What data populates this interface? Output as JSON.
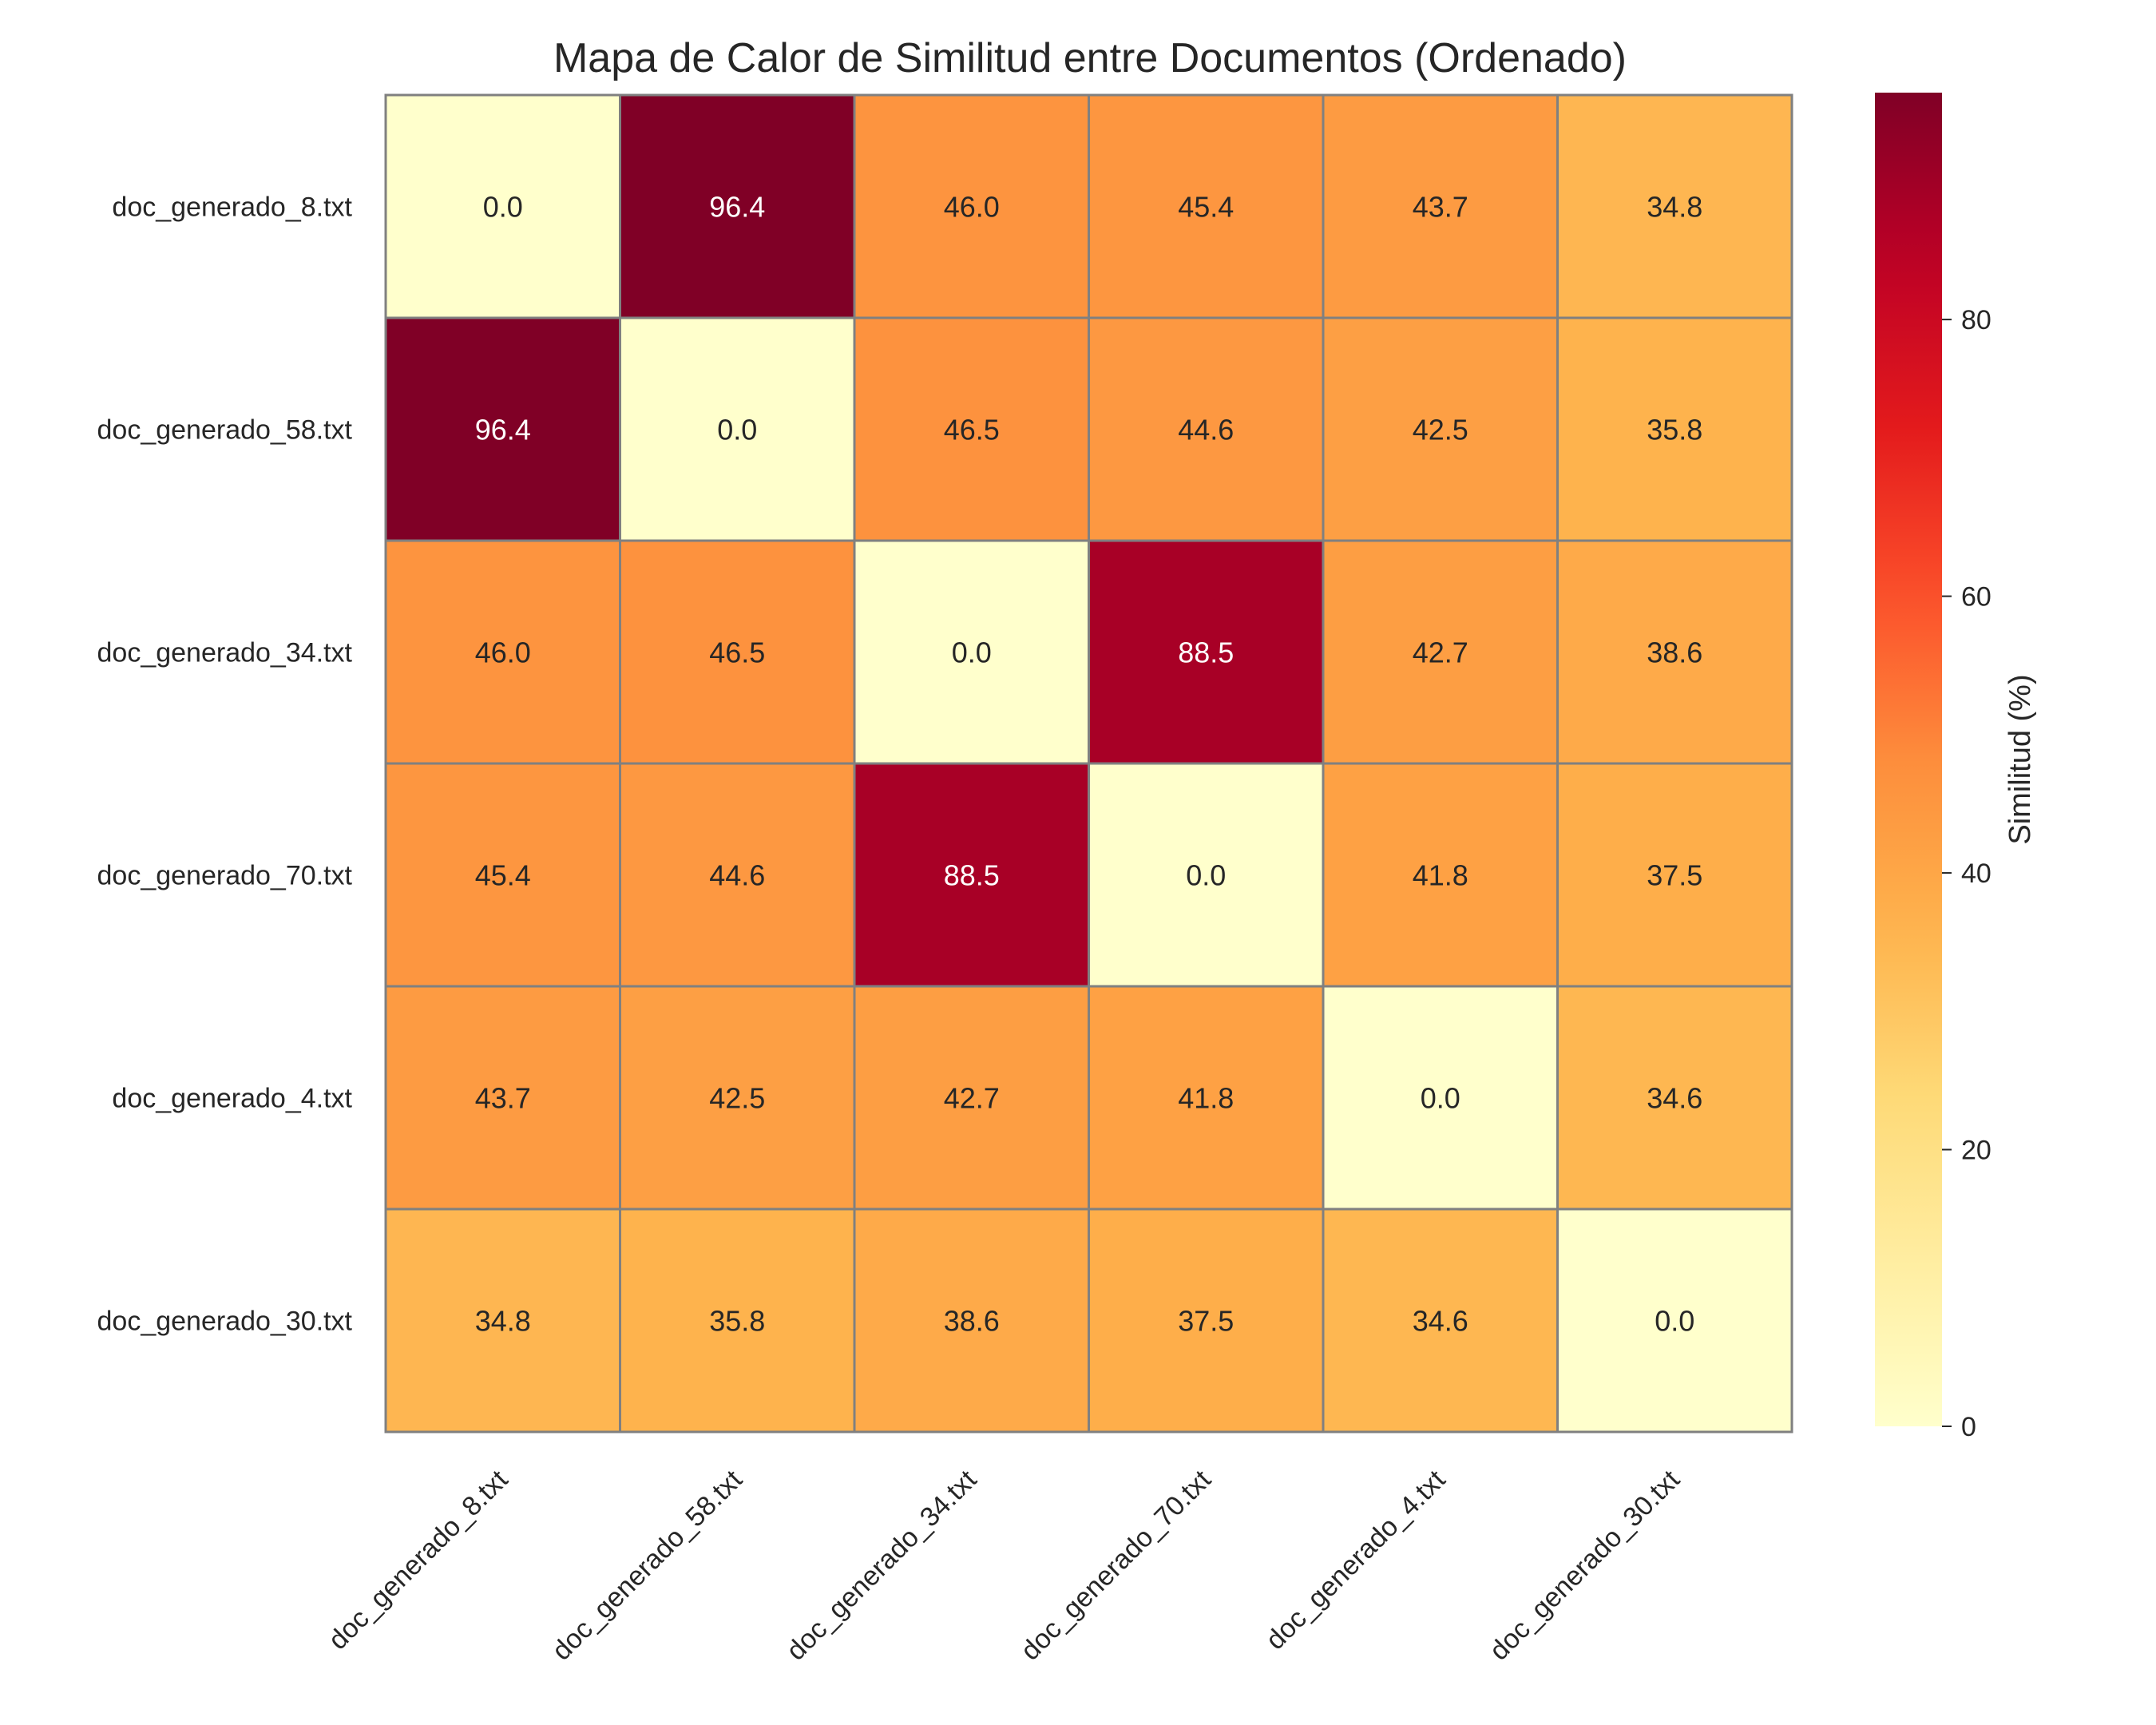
{
  "chart_data": {
    "type": "heatmap",
    "title": "Mapa de Calor de Similitud entre Documentos (Ordenado)",
    "xlabel": "",
    "ylabel": "",
    "x_categories": [
      "doc_generado_8.txt",
      "doc_generado_58.txt",
      "doc_generado_34.txt",
      "doc_generado_70.txt",
      "doc_generado_4.txt",
      "doc_generado_30.txt"
    ],
    "y_categories": [
      "doc_generado_8.txt",
      "doc_generado_58.txt",
      "doc_generado_34.txt",
      "doc_generado_70.txt",
      "doc_generado_4.txt",
      "doc_generado_30.txt"
    ],
    "values": [
      [
        0.0,
        96.4,
        46.0,
        45.4,
        43.7,
        34.8
      ],
      [
        96.4,
        0.0,
        46.5,
        44.6,
        42.5,
        35.8
      ],
      [
        46.0,
        46.5,
        0.0,
        88.5,
        42.7,
        38.6
      ],
      [
        45.4,
        44.6,
        88.5,
        0.0,
        41.8,
        37.5
      ],
      [
        43.7,
        42.5,
        42.7,
        41.8,
        0.0,
        34.6
      ],
      [
        34.8,
        35.8,
        38.6,
        37.5,
        34.6,
        0.0
      ]
    ],
    "value_format": "0.0",
    "colormap": "YlOrRd",
    "colorbar": {
      "label": "Similitud (%)",
      "range": [
        0,
        96.4
      ],
      "ticks": [
        0,
        20,
        40,
        60,
        80
      ]
    },
    "cell_border_color": "#808080",
    "grid": false,
    "legend": "colorbar-right"
  }
}
